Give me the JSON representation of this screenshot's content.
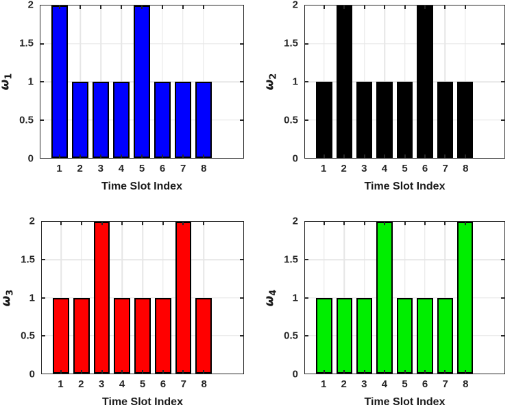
{
  "figure": {
    "background": "#ffffff",
    "axis_color": "#262626",
    "grid_color": "#e6e6e6",
    "bar_edge_color": "#000000",
    "tick_label_color": "#262626"
  },
  "chart_data": [
    {
      "type": "bar",
      "position": "top-left",
      "ylabel": {
        "symbol": "ω",
        "subscript": "1"
      },
      "xlabel": "Time Slot Index",
      "categories": [
        "1",
        "2",
        "3",
        "4",
        "5",
        "6",
        "7",
        "8"
      ],
      "values": [
        2,
        1,
        1,
        1,
        2,
        1,
        1,
        1
      ],
      "bar_color": "#0000ff",
      "bar_width": 0.8,
      "xlim": [
        0.05,
        9.95
      ],
      "ylim": [
        0,
        2
      ],
      "ytick_values": [
        0,
        0.5,
        1,
        1.5,
        2
      ],
      "ytick_labels": [
        "0",
        "0.5",
        "1",
        "1.5",
        "2"
      ],
      "grid": true,
      "legend": "none"
    },
    {
      "type": "bar",
      "position": "top-right",
      "ylabel": {
        "symbol": "ω",
        "subscript": "2"
      },
      "xlabel": "Time Slot Index",
      "categories": [
        "1",
        "2",
        "3",
        "4",
        "5",
        "6",
        "7",
        "8"
      ],
      "values": [
        1,
        2,
        1,
        1,
        1,
        2,
        1,
        1
      ],
      "bar_color": "#000000",
      "bar_width": 0.8,
      "xlim": [
        0.05,
        9.95
      ],
      "ylim": [
        0,
        2
      ],
      "ytick_values": [
        0,
        0.5,
        1,
        1.5,
        2
      ],
      "ytick_labels": [
        "0",
        "0.5",
        "1",
        "1.5",
        "2"
      ],
      "grid": true,
      "legend": "none"
    },
    {
      "type": "bar",
      "position": "bottom-left",
      "ylabel": {
        "symbol": "ω",
        "subscript": "3"
      },
      "xlabel": "Time Slot Index",
      "categories": [
        "1",
        "2",
        "3",
        "4",
        "5",
        "6",
        "7",
        "8"
      ],
      "values": [
        1,
        1,
        2,
        1,
        1,
        1,
        2,
        1
      ],
      "bar_color": "#ff0000",
      "bar_width": 0.8,
      "xlim": [
        0.05,
        9.95
      ],
      "ylim": [
        0,
        2
      ],
      "ytick_values": [
        0,
        0.5,
        1,
        1.5,
        2
      ],
      "ytick_labels": [
        "0",
        "0.5",
        "1",
        "1.5",
        "2"
      ],
      "grid": true,
      "legend": "none"
    },
    {
      "type": "bar",
      "position": "bottom-right",
      "ylabel": {
        "symbol": "ω",
        "subscript": "4"
      },
      "xlabel": "Time Slot Index",
      "categories": [
        "1",
        "2",
        "3",
        "4",
        "5",
        "6",
        "7",
        "8"
      ],
      "values": [
        1,
        1,
        1,
        2,
        1,
        1,
        1,
        2
      ],
      "bar_color": "#00ee00",
      "bar_width": 0.8,
      "xlim": [
        0.05,
        9.95
      ],
      "ylim": [
        0,
        2
      ],
      "ytick_values": [
        0,
        0.5,
        1,
        1.5,
        2
      ],
      "ytick_labels": [
        "0",
        "0.5",
        "1",
        "1.5",
        "2"
      ],
      "grid": true,
      "legend": "none"
    }
  ]
}
